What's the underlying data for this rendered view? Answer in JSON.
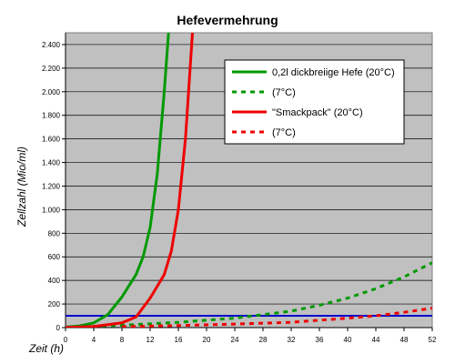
{
  "chart_data": {
    "type": "line",
    "title": "Hefevermehrung",
    "xlabel": "Zeit (h)",
    "ylabel": "Zellzahl (Mio/ml)",
    "xlim": [
      0,
      52
    ],
    "ylim": [
      0,
      2500
    ],
    "x_ticks": [
      0,
      4,
      8,
      12,
      16,
      20,
      24,
      28,
      32,
      36,
      40,
      44,
      48,
      52
    ],
    "y_ticks": [
      0,
      200,
      400,
      600,
      800,
      1000,
      1200,
      1400,
      1600,
      1800,
      2000,
      2200,
      2400
    ],
    "y_tick_labels": [
      "0",
      "200",
      "400",
      "600",
      "800",
      "1.000",
      "1.200",
      "1.400",
      "1.600",
      "1.800",
      "2.000",
      "2.200",
      "2.400"
    ],
    "grid": "horizontal",
    "plot_background": "#c0c0c0",
    "legend_position": "top-right",
    "reference_line": {
      "y": 100,
      "color": "#0000cc"
    },
    "series": [
      {
        "name": "0,2l dickbreiige Hefe (20°C)",
        "color": "#009900",
        "style": "solid",
        "points": [
          [
            0,
            5
          ],
          [
            2,
            15
          ],
          [
            4,
            40
          ],
          [
            6,
            110
          ],
          [
            8,
            260
          ],
          [
            10,
            450
          ],
          [
            11,
            600
          ],
          [
            12,
            850
          ],
          [
            13,
            1300
          ],
          [
            14,
            2000
          ],
          [
            14.6,
            2500
          ]
        ]
      },
      {
        "name": "(7°C)",
        "color": "#009900",
        "style": "dotted",
        "points": [
          [
            0,
            2
          ],
          [
            8,
            20
          ],
          [
            16,
            45
          ],
          [
            24,
            80
          ],
          [
            32,
            140
          ],
          [
            36,
            190
          ],
          [
            40,
            250
          ],
          [
            44,
            330
          ],
          [
            48,
            430
          ],
          [
            52,
            550
          ]
        ]
      },
      {
        "name": "\"Smackpack\" (20°C)",
        "color": "#ee0000",
        "style": "solid",
        "points": [
          [
            0,
            2
          ],
          [
            4,
            10
          ],
          [
            8,
            40
          ],
          [
            10,
            90
          ],
          [
            12,
            250
          ],
          [
            14,
            450
          ],
          [
            15,
            650
          ],
          [
            16,
            1000
          ],
          [
            17,
            1600
          ],
          [
            18,
            2500
          ]
        ]
      },
      {
        "name": "(7°C)",
        "color": "#ee0000",
        "style": "dotted",
        "points": [
          [
            8,
            8
          ],
          [
            16,
            18
          ],
          [
            24,
            30
          ],
          [
            32,
            45
          ],
          [
            40,
            80
          ],
          [
            44,
            100
          ],
          [
            48,
            130
          ],
          [
            52,
            165
          ]
        ]
      }
    ]
  }
}
